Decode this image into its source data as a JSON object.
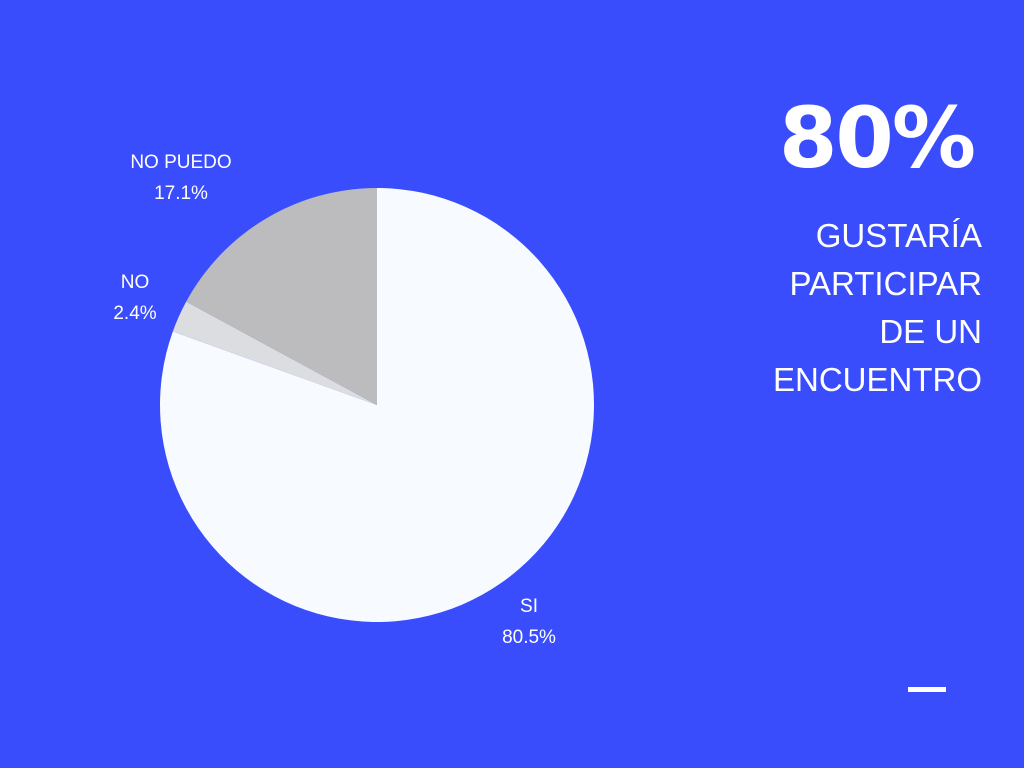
{
  "chart_data": {
    "type": "pie",
    "slices": [
      {
        "label": "SI",
        "value": 80.5,
        "pct_text": "80.5%",
        "color": "#f7fbff"
      },
      {
        "label": "NO",
        "value": 2.4,
        "pct_text": "2.4%",
        "color": "#dcdde1"
      },
      {
        "label": "NO PUEDO",
        "value": 17.1,
        "pct_text": "17.1%",
        "color": "#bcbcbe"
      }
    ]
  },
  "stat": {
    "value": "80%",
    "caption_lines": [
      "GUSTARÍA",
      "PARTICIPAR",
      "DE UN",
      "ENCUENTRO"
    ]
  },
  "colors": {
    "background": "#3a4dfd",
    "text": "#ffffff"
  }
}
